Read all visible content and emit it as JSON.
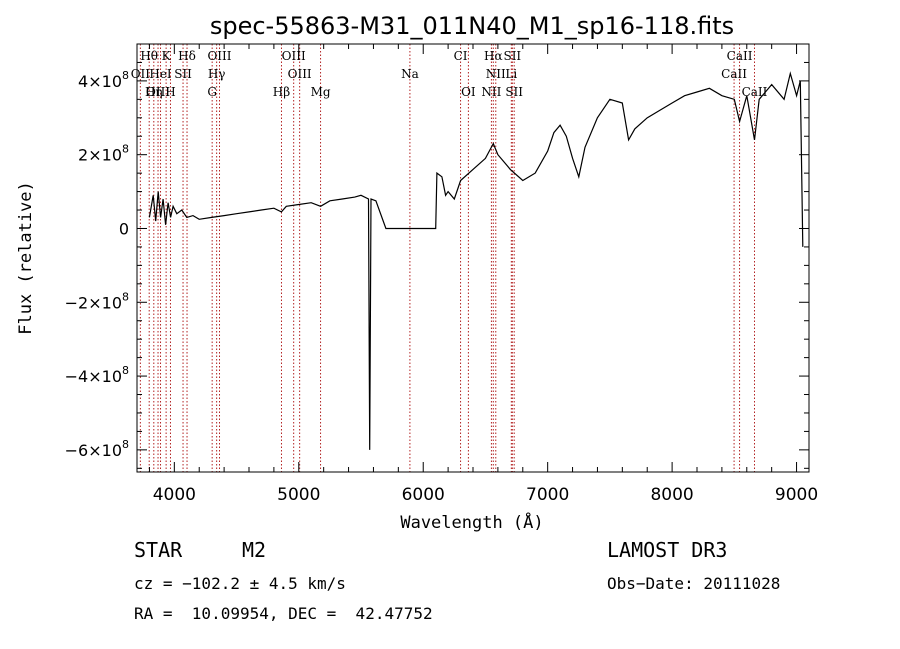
{
  "chart_data": {
    "type": "line",
    "title": "spec-55863-M31_011N40_M1_sp16-118.fits",
    "xlabel": "Wavelength (Å)",
    "ylabel": "Flux (relative)",
    "xlim": [
      3700,
      9100
    ],
    "ylim": [
      -660000000.0,
      500000000.0
    ],
    "x_ticks": [
      {
        "value": 4000,
        "label": "4000"
      },
      {
        "value": 5000,
        "label": "5000"
      },
      {
        "value": 6000,
        "label": "6000"
      },
      {
        "value": 7000,
        "label": "7000"
      },
      {
        "value": 8000,
        "label": "8000"
      },
      {
        "value": 9000,
        "label": "9000"
      }
    ],
    "y_ticks": [
      {
        "value": 400000000.0,
        "mant": "4×10",
        "exp": "8"
      },
      {
        "value": 200000000.0,
        "mant": "2×10",
        "exp": "8"
      },
      {
        "value": 0,
        "mant": "0",
        "exp": ""
      },
      {
        "value": -200000000.0,
        "mant": "−2×10",
        "exp": "8"
      },
      {
        "value": -400000000.0,
        "mant": "−4×10",
        "exp": "8"
      },
      {
        "value": -600000000.0,
        "mant": "−6×10",
        "exp": "8"
      }
    ],
    "series": [
      {
        "name": "spectrum",
        "points": [
          [
            3800,
            30000000.0
          ],
          [
            3830,
            90000000.0
          ],
          [
            3850,
            20000000.0
          ],
          [
            3870,
            100000000.0
          ],
          [
            3890,
            30000000.0
          ],
          [
            3910,
            80000000.0
          ],
          [
            3930,
            10000000.0
          ],
          [
            3950,
            70000000.0
          ],
          [
            3970,
            30000000.0
          ],
          [
            3990,
            60000000.0
          ],
          [
            4020,
            40000000.0
          ],
          [
            4060,
            50000000.0
          ],
          [
            4100,
            30000000.0
          ],
          [
            4150,
            35000000.0
          ],
          [
            4200,
            25000000.0
          ],
          [
            4300,
            30000000.0
          ],
          [
            4400,
            35000000.0
          ],
          [
            4500,
            40000000.0
          ],
          [
            4600,
            45000000.0
          ],
          [
            4700,
            50000000.0
          ],
          [
            4800,
            55000000.0
          ],
          [
            4860,
            45000000.0
          ],
          [
            4900,
            60000000.0
          ],
          [
            5000,
            65000000.0
          ],
          [
            5100,
            70000000.0
          ],
          [
            5175,
            60000000.0
          ],
          [
            5250,
            75000000.0
          ],
          [
            5350,
            80000000.0
          ],
          [
            5450,
            85000000.0
          ],
          [
            5500,
            90000000.0
          ],
          [
            5560,
            80000000.0
          ],
          [
            5570,
            -600000000.0
          ],
          [
            5580,
            80000000.0
          ],
          [
            5620,
            75000000.0
          ],
          [
            5700,
            0.0
          ],
          [
            6000,
            0.0
          ],
          [
            6100,
            0.0
          ],
          [
            6110,
            150000000.0
          ],
          [
            6150,
            140000000.0
          ],
          [
            6180,
            90000000.0
          ],
          [
            6200,
            100000000.0
          ],
          [
            6250,
            80000000.0
          ],
          [
            6300,
            130000000.0
          ],
          [
            6400,
            160000000.0
          ],
          [
            6500,
            190000000.0
          ],
          [
            6563,
            230000000.0
          ],
          [
            6600,
            200000000.0
          ],
          [
            6700,
            160000000.0
          ],
          [
            6800,
            130000000.0
          ],
          [
            6900,
            150000000.0
          ],
          [
            7000,
            210000000.0
          ],
          [
            7050,
            260000000.0
          ],
          [
            7100,
            280000000.0
          ],
          [
            7150,
            250000000.0
          ],
          [
            7200,
            190000000.0
          ],
          [
            7250,
            140000000.0
          ],
          [
            7300,
            220000000.0
          ],
          [
            7400,
            300000000.0
          ],
          [
            7500,
            350000000.0
          ],
          [
            7600,
            340000000.0
          ],
          [
            7650,
            240000000.0
          ],
          [
            7700,
            270000000.0
          ],
          [
            7800,
            300000000.0
          ],
          [
            7900,
            320000000.0
          ],
          [
            8000,
            340000000.0
          ],
          [
            8100,
            360000000.0
          ],
          [
            8200,
            370000000.0
          ],
          [
            8300,
            380000000.0
          ],
          [
            8400,
            360000000.0
          ],
          [
            8500,
            350000000.0
          ],
          [
            8542,
            290000000.0
          ],
          [
            8600,
            360000000.0
          ],
          [
            8662,
            240000000.0
          ],
          [
            8700,
            350000000.0
          ],
          [
            8800,
            390000000.0
          ],
          [
            8900,
            350000000.0
          ],
          [
            8950,
            420000000.0
          ],
          [
            9000,
            360000000.0
          ],
          [
            9030,
            400000000.0
          ],
          [
            9050,
            -50000000.0
          ]
        ]
      }
    ],
    "lines": [
      {
        "label": "Hθ",
        "wl": 3798,
        "row": 0
      },
      {
        "label": "K",
        "wl": 3934,
        "row": 0
      },
      {
        "label": "Hδ",
        "wl": 4102,
        "row": 0
      },
      {
        "label": "OIII",
        "wl": 4363,
        "row": 0
      },
      {
        "label": "OIII",
        "wl": 4959,
        "row": 0
      },
      {
        "label": "CI",
        "wl": 6300,
        "row": 0
      },
      {
        "label": "Hα",
        "wl": 6563,
        "row": 0
      },
      {
        "label": "SII",
        "wl": 6716,
        "row": 0
      },
      {
        "label": "CaII",
        "wl": 8542,
        "row": 0
      },
      {
        "label": "OII",
        "wl": 3727,
        "row": 1
      },
      {
        "label": "HeI",
        "wl": 3889,
        "row": 1
      },
      {
        "label": "SII",
        "wl": 4070,
        "row": 1
      },
      {
        "label": "Hγ",
        "wl": 4340,
        "row": 1
      },
      {
        "label": "OIII",
        "wl": 5007,
        "row": 1
      },
      {
        "label": "Na",
        "wl": 5893,
        "row": 1
      },
      {
        "label": "NII",
        "wl": 6583,
        "row": 1
      },
      {
        "label": "Li",
        "wl": 6708,
        "row": 1
      },
      {
        "label": "CaII",
        "wl": 8498,
        "row": 1
      },
      {
        "label": "OIII",
        "wl": 3869,
        "row": 2
      },
      {
        "label": "Hη",
        "wl": 3835,
        "row": 2
      },
      {
        "label": "H",
        "wl": 3969,
        "row": 2
      },
      {
        "label": "G",
        "wl": 4304,
        "row": 2
      },
      {
        "label": "Hβ",
        "wl": 4861,
        "row": 2
      },
      {
        "label": "Mg",
        "wl": 5175,
        "row": 2
      },
      {
        "label": "OI",
        "wl": 6363,
        "row": 2
      },
      {
        "label": "NII",
        "wl": 6548,
        "row": 2
      },
      {
        "label": "SII",
        "wl": 6731,
        "row": 2
      },
      {
        "label": "CaII",
        "wl": 8662,
        "row": 2
      }
    ]
  },
  "info": {
    "class": "STAR",
    "subclass": "M2",
    "survey": "LAMOST DR3",
    "cz": "cz = −102.2 ± 4.5 km/s",
    "obs_date": "Obs−Date: 20111028",
    "radec": "RA =  10.09954, DEC =  42.47752"
  }
}
